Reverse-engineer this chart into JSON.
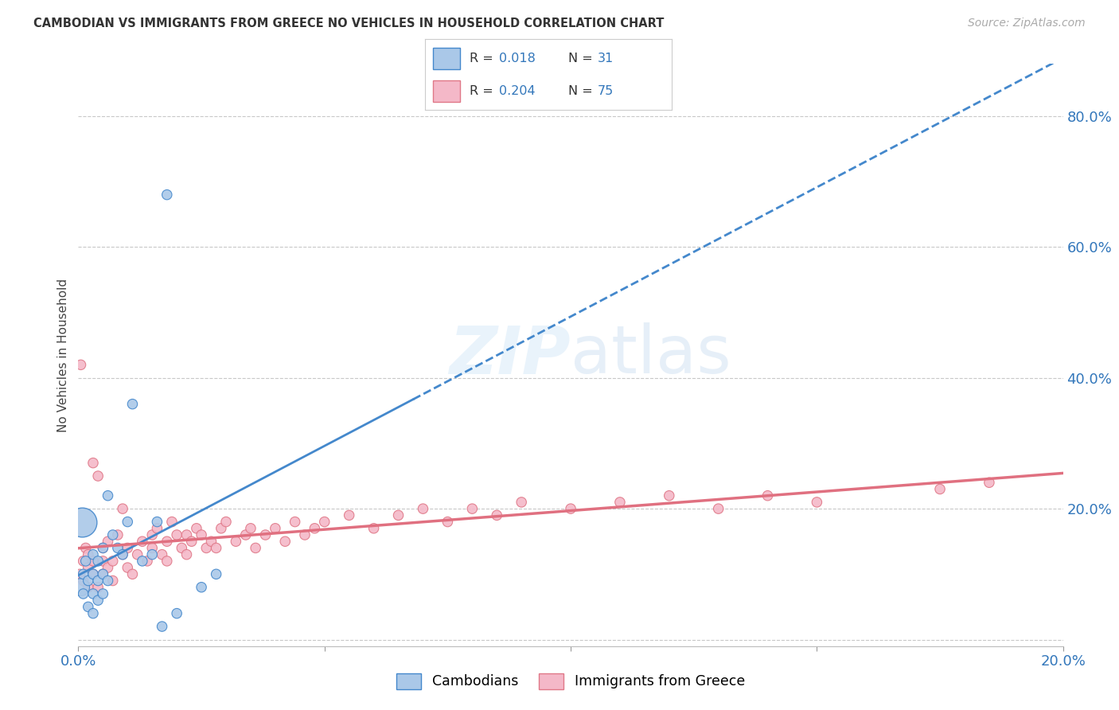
{
  "title": "CAMBODIAN VS IMMIGRANTS FROM GREECE NO VEHICLES IN HOUSEHOLD CORRELATION CHART",
  "source": "Source: ZipAtlas.com",
  "ylabel": "No Vehicles in Household",
  "xlim": [
    0.0,
    0.2
  ],
  "ylim": [
    -0.01,
    0.88
  ],
  "xticks": [
    0.0,
    0.05,
    0.1,
    0.15,
    0.2
  ],
  "xtick_labels": [
    "0.0%",
    "",
    "",
    "",
    "20.0%"
  ],
  "yticks_right": [
    0.0,
    0.2,
    0.4,
    0.6,
    0.8
  ],
  "ytick_right_labels": [
    "",
    "20.0%",
    "40.0%",
    "60.0%",
    "80.0%"
  ],
  "cambodian_color": "#aac8e8",
  "cambodian_edge": "#4488cc",
  "greece_color": "#f4b8c8",
  "greece_edge": "#e07888",
  "trend_cambodian_solid": "#4488cc",
  "trend_greece": "#e07080",
  "watermark": "ZIPatlas",
  "legend_label1": "Cambodians",
  "legend_label2": "Immigrants from Greece",
  "cam_trend_solid_end": 0.068,
  "cam_trend_dash_start": 0.068,
  "cambodian_x": [
    0.0005,
    0.001,
    0.001,
    0.0015,
    0.002,
    0.002,
    0.003,
    0.003,
    0.003,
    0.003,
    0.004,
    0.004,
    0.004,
    0.005,
    0.005,
    0.005,
    0.006,
    0.006,
    0.007,
    0.008,
    0.009,
    0.01,
    0.011,
    0.013,
    0.015,
    0.016,
    0.017,
    0.018,
    0.02,
    0.025,
    0.028
  ],
  "cambodian_y": [
    0.08,
    0.07,
    0.1,
    0.12,
    0.05,
    0.09,
    0.04,
    0.07,
    0.1,
    0.13,
    0.06,
    0.09,
    0.12,
    0.07,
    0.1,
    0.14,
    0.09,
    0.22,
    0.16,
    0.14,
    0.13,
    0.18,
    0.36,
    0.12,
    0.13,
    0.18,
    0.02,
    0.68,
    0.04,
    0.08,
    0.1
  ],
  "cambodian_size_raw": [
    250,
    80,
    80,
    80,
    80,
    80,
    80,
    80,
    80,
    80,
    80,
    80,
    80,
    80,
    80,
    80,
    80,
    80,
    80,
    80,
    80,
    80,
    80,
    80,
    80,
    80,
    80,
    80,
    80,
    80,
    80
  ],
  "greece_x": [
    0.0003,
    0.0005,
    0.001,
    0.001,
    0.0015,
    0.002,
    0.002,
    0.002,
    0.003,
    0.003,
    0.003,
    0.004,
    0.004,
    0.005,
    0.005,
    0.005,
    0.006,
    0.006,
    0.007,
    0.007,
    0.008,
    0.009,
    0.009,
    0.01,
    0.01,
    0.011,
    0.012,
    0.013,
    0.014,
    0.015,
    0.015,
    0.016,
    0.017,
    0.018,
    0.018,
    0.019,
    0.02,
    0.021,
    0.022,
    0.022,
    0.023,
    0.024,
    0.025,
    0.026,
    0.027,
    0.028,
    0.029,
    0.03,
    0.032,
    0.034,
    0.035,
    0.036,
    0.038,
    0.04,
    0.042,
    0.044,
    0.046,
    0.048,
    0.05,
    0.055,
    0.06,
    0.065,
    0.07,
    0.075,
    0.08,
    0.085,
    0.09,
    0.1,
    0.11,
    0.12,
    0.13,
    0.14,
    0.15,
    0.175,
    0.185
  ],
  "greece_y": [
    0.1,
    0.42,
    0.12,
    0.09,
    0.14,
    0.11,
    0.08,
    0.13,
    0.1,
    0.12,
    0.27,
    0.08,
    0.25,
    0.1,
    0.12,
    0.14,
    0.11,
    0.15,
    0.09,
    0.12,
    0.16,
    0.13,
    0.2,
    0.11,
    0.14,
    0.1,
    0.13,
    0.15,
    0.12,
    0.14,
    0.16,
    0.17,
    0.13,
    0.15,
    0.12,
    0.18,
    0.16,
    0.14,
    0.16,
    0.13,
    0.15,
    0.17,
    0.16,
    0.14,
    0.15,
    0.14,
    0.17,
    0.18,
    0.15,
    0.16,
    0.17,
    0.14,
    0.16,
    0.17,
    0.15,
    0.18,
    0.16,
    0.17,
    0.18,
    0.19,
    0.17,
    0.19,
    0.2,
    0.18,
    0.2,
    0.19,
    0.21,
    0.2,
    0.21,
    0.22,
    0.2,
    0.22,
    0.21,
    0.23,
    0.24
  ],
  "greece_size_raw": [
    80,
    80,
    80,
    80,
    80,
    80,
    80,
    80,
    80,
    80,
    80,
    80,
    80,
    80,
    80,
    80,
    80,
    80,
    80,
    80,
    80,
    80,
    80,
    80,
    80,
    80,
    80,
    80,
    80,
    80,
    80,
    80,
    80,
    80,
    80,
    80,
    80,
    80,
    80,
    80,
    80,
    80,
    80,
    80,
    80,
    80,
    80,
    80,
    80,
    80,
    80,
    80,
    80,
    80,
    80,
    80,
    80,
    80,
    80,
    80,
    80,
    80,
    80,
    80,
    80,
    80,
    80,
    80,
    80,
    80,
    80,
    80,
    80,
    80,
    80
  ]
}
